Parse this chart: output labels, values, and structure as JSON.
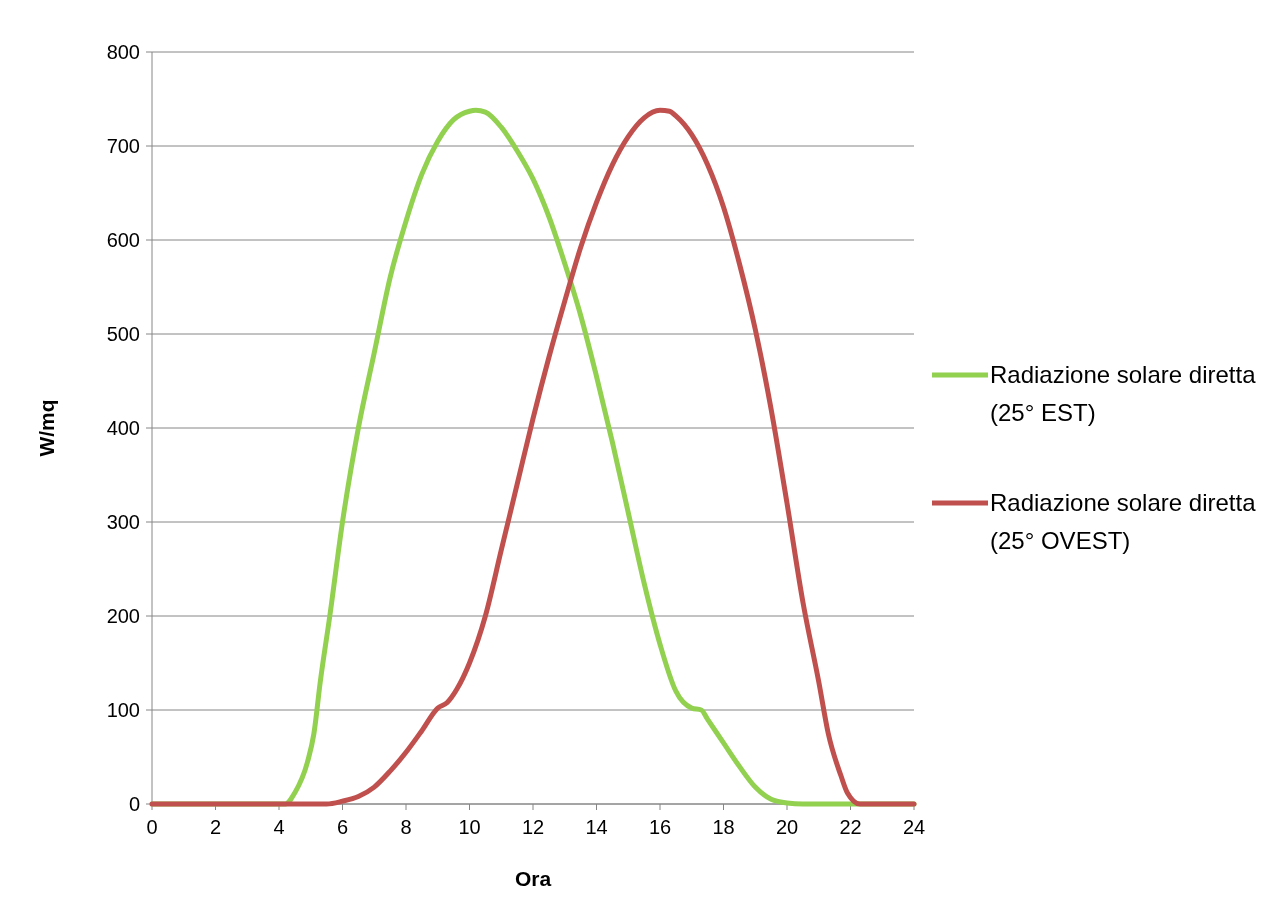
{
  "chart_data": {
    "type": "line",
    "xlabel": "Ora",
    "ylabel": "W/mq",
    "xlim": [
      0,
      24
    ],
    "xticks": [
      0,
      2,
      4,
      6,
      8,
      10,
      12,
      14,
      16,
      18,
      20,
      22,
      24
    ],
    "ylim": [
      0,
      800
    ],
    "yticks": [
      0,
      100,
      200,
      300,
      400,
      500,
      600,
      700,
      800
    ],
    "grid": "y",
    "legend": "right",
    "marker": "none",
    "line_style": "solid",
    "series": [
      {
        "name": "Radiazione solare diretta (25° EST)",
        "color": "#92d050",
        "x": [
          0,
          4.2,
          4.5,
          4.9,
          5.1,
          5.3,
          5.6,
          6,
          6.5,
          7,
          7.5,
          8,
          8.5,
          9,
          9.5,
          10,
          10.2,
          10.5,
          11,
          11.5,
          12,
          12.5,
          13,
          13.5,
          14,
          14.5,
          15,
          15.5,
          16,
          16.5,
          17,
          17.3,
          17.5,
          18,
          18.5,
          19,
          19.5,
          20,
          20.5,
          24
        ],
        "values": [
          0,
          0,
          12,
          45,
          75,
          130,
          200,
          300,
          400,
          480,
          560,
          620,
          670,
          705,
          728,
          737,
          738,
          736,
          720,
          695,
          665,
          625,
          575,
          520,
          455,
          385,
          310,
          235,
          170,
          120,
          102,
          100,
          90,
          65,
          40,
          18,
          5,
          1,
          0,
          0
        ]
      },
      {
        "name": "Radiazione solare diretta (25° OVEST)",
        "color": "#c0504d",
        "x": [
          0,
          5.5,
          6,
          6.5,
          7,
          7.5,
          8,
          8.5,
          9,
          9.3,
          9.6,
          10,
          10.5,
          11,
          11.5,
          12,
          12.5,
          13,
          13.5,
          14,
          14.5,
          15,
          15.5,
          16,
          16.3,
          16.5,
          17,
          17.5,
          18,
          18.5,
          19,
          19.5,
          20,
          20.5,
          21,
          21.3,
          21.7,
          21.9,
          22.3,
          24
        ],
        "values": [
          0,
          0,
          3,
          8,
          18,
          35,
          55,
          78,
          102,
          108,
          122,
          150,
          200,
          270,
          340,
          410,
          475,
          535,
          592,
          640,
          680,
          710,
          730,
          738,
          737,
          732,
          712,
          680,
          635,
          575,
          505,
          420,
          320,
          215,
          130,
          75,
          30,
          12,
          0,
          0
        ]
      }
    ]
  }
}
